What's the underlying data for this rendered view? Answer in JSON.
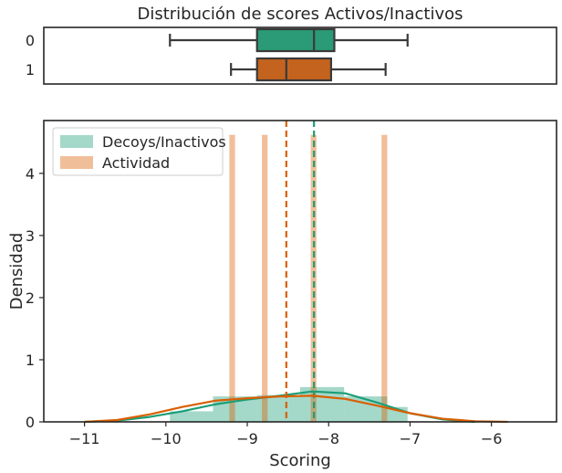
{
  "chart_data": [
    {
      "type": "boxplot",
      "title": "Distribución de scores Activos/Inactivos",
      "orientation": "horizontal",
      "categories": [
        "0",
        "1"
      ],
      "xlim": [
        -11.5,
        -5.2
      ],
      "boxes": [
        {
          "category": "0",
          "whisker_low": -9.95,
          "q1": -8.88,
          "median": -8.18,
          "q3": -7.93,
          "whisker_high": -7.03,
          "color": "#2a9a77"
        },
        {
          "category": "1",
          "whisker_low": -9.2,
          "q1": -8.88,
          "median": -8.52,
          "q3": -7.97,
          "whisker_high": -7.3,
          "color": "#c4631d"
        }
      ]
    },
    {
      "type": "histogram+kde",
      "xlabel": "Scoring",
      "ylabel": "Densidad",
      "xlim": [
        -11.5,
        -5.2
      ],
      "ylim": [
        0,
        4.85
      ],
      "xticks": [
        -11,
        -10,
        -9,
        -8,
        -7,
        -6
      ],
      "yticks": [
        0,
        1,
        2,
        3,
        4
      ],
      "legend": {
        "placement": "top-left",
        "entries": [
          "Decoys/Inactivos",
          "Actividad"
        ]
      },
      "series": [
        {
          "name": "Decoys/Inactivos",
          "color": "#1b9e77",
          "bars": [
            {
              "x0": -9.95,
              "x1": -9.42,
              "h": 0.17
            },
            {
              "x0": -9.42,
              "x1": -8.88,
              "h": 0.41
            },
            {
              "x0": -8.88,
              "x1": -8.35,
              "h": 0.43
            },
            {
              "x0": -8.35,
              "x1": -7.81,
              "h": 0.56
            },
            {
              "x0": -7.81,
              "x1": -7.28,
              "h": 0.41
            },
            {
              "x0": -7.28,
              "x1": -7.03,
              "h": 0.24
            }
          ],
          "kde": [
            [
              -11,
              0.0
            ],
            [
              -10.6,
              0.02
            ],
            [
              -10.2,
              0.08
            ],
            [
              -9.8,
              0.17
            ],
            [
              -9.4,
              0.28
            ],
            [
              -9.0,
              0.36
            ],
            [
              -8.6,
              0.42
            ],
            [
              -8.2,
              0.49
            ],
            [
              -7.8,
              0.46
            ],
            [
              -7.4,
              0.31
            ],
            [
              -7.0,
              0.14
            ],
            [
              -6.6,
              0.04
            ],
            [
              -6.2,
              0.0
            ]
          ],
          "mean_line": -8.18
        },
        {
          "name": "Actividad",
          "color": "#d95f02",
          "bars": [
            {
              "x0": -9.22,
              "x1": -9.15,
              "h": 4.62
            },
            {
              "x0": -8.82,
              "x1": -8.75,
              "h": 4.62
            },
            {
              "x0": -8.22,
              "x1": -8.15,
              "h": 4.62
            },
            {
              "x0": -7.35,
              "x1": -7.28,
              "h": 4.62
            }
          ],
          "kde": [
            [
              -11.0,
              0.0
            ],
            [
              -10.6,
              0.03
            ],
            [
              -10.2,
              0.12
            ],
            [
              -9.8,
              0.24
            ],
            [
              -9.4,
              0.34
            ],
            [
              -9.0,
              0.38
            ],
            [
              -8.6,
              0.41
            ],
            [
              -8.2,
              0.42
            ],
            [
              -7.8,
              0.37
            ],
            [
              -7.4,
              0.26
            ],
            [
              -7.0,
              0.14
            ],
            [
              -6.6,
              0.05
            ],
            [
              -6.2,
              0.01
            ],
            [
              -5.8,
              0.0
            ]
          ],
          "mean_line": -8.52
        }
      ]
    }
  ]
}
